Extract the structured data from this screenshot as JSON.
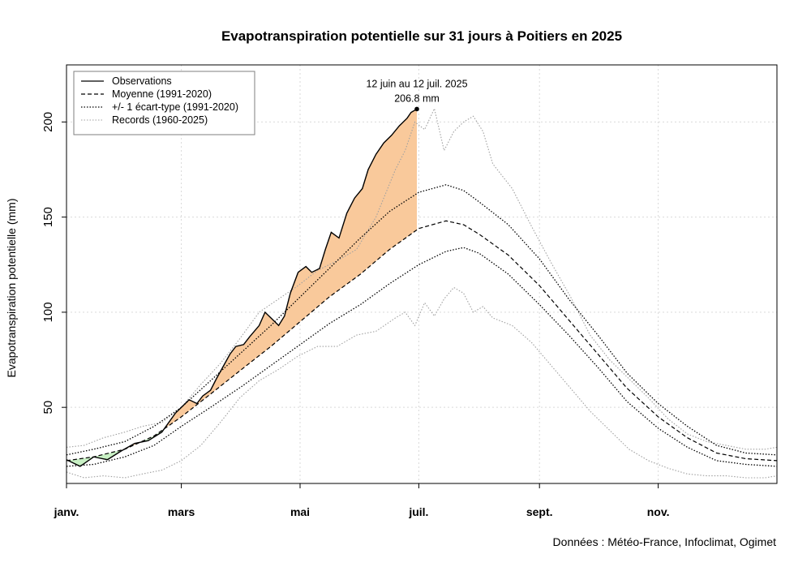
{
  "chart_data": {
    "type": "line",
    "title": "Evapotranspiration potentielle sur 31 jours à Poitiers en 2025",
    "ylabel": "Evapotranspiration potentielle (mm)",
    "xlabel": "",
    "source": "Données : Météo-France, Infoclimat, Ogimet",
    "ylim": [
      10,
      230
    ],
    "xlim": [
      1,
      366
    ],
    "grid": true,
    "legend_position": "top-left",
    "yticks": [
      50,
      100,
      150,
      200
    ],
    "month_ticks": [
      {
        "label": "janv.",
        "day": 1
      },
      {
        "label": "mars",
        "day": 60
      },
      {
        "label": "mai",
        "day": 121
      },
      {
        "label": "juil.",
        "day": 182
      },
      {
        "label": "sept.",
        "day": 244
      },
      {
        "label": "nov.",
        "day": 305
      }
    ],
    "legend": [
      {
        "label": "Observations",
        "style": "solid"
      },
      {
        "label": "Moyenne (1991-2020)",
        "style": "dashed"
      },
      {
        "label": "+/- 1 écart-type (1991-2020)",
        "style": "dotted"
      },
      {
        "label": "Records (1960-2025)",
        "style": "dotted-gray"
      }
    ],
    "annotation": {
      "line1": "12 juin au 12 juil. 2025",
      "line2": "206.8 mm",
      "day": 181,
      "value": 206.8
    },
    "colors": {
      "above": "#f9c99b",
      "above_light": "#fce3cb",
      "below": "#c8f0c4",
      "record": "#a0a0a0",
      "grid": "#d9d9d9"
    },
    "series": [
      {
        "name": "Observations",
        "days": [
          1,
          8,
          15,
          22,
          29,
          36,
          43,
          50,
          57,
          60,
          64,
          68,
          71,
          75,
          78,
          85,
          88,
          92,
          95,
          100,
          103,
          106,
          110,
          113,
          116,
          120,
          124,
          127,
          131,
          134,
          137,
          141,
          145,
          149,
          153,
          156,
          160,
          164,
          168,
          172,
          176,
          178,
          181
        ],
        "values": [
          22.5,
          19,
          24,
          22.5,
          27,
          31,
          32.5,
          37,
          47,
          50,
          54,
          52,
          56,
          59,
          65,
          78,
          82,
          83,
          87,
          93,
          100,
          97,
          93,
          98,
          110,
          121,
          124,
          121,
          123,
          133,
          142,
          139,
          152,
          160,
          165,
          175,
          183,
          189,
          193,
          198,
          202,
          205,
          206.8
        ]
      },
      {
        "name": "Moyenne (1991-2020)",
        "days": [
          1,
          15,
          31,
          46,
          60,
          75,
          91,
          106,
          121,
          136,
          152,
          167,
          182,
          196,
          205,
          213,
          228,
          244,
          259,
          274,
          289,
          305,
          320,
          335,
          350,
          366
        ],
        "values": [
          22,
          24,
          28,
          35,
          45,
          57,
          70,
          82,
          95,
          108,
          120,
          133,
          144,
          148,
          146,
          141,
          130,
          114,
          96,
          78,
          60,
          45,
          34,
          26,
          23,
          22
        ]
      },
      {
        "name": "+1 écart-type",
        "days": [
          1,
          15,
          31,
          46,
          60,
          75,
          91,
          106,
          121,
          136,
          152,
          167,
          182,
          196,
          205,
          213,
          228,
          244,
          259,
          274,
          289,
          305,
          320,
          335,
          350,
          366
        ],
        "values": [
          25,
          28,
          32,
          40,
          50,
          64,
          79,
          93,
          108,
          123,
          139,
          153,
          163,
          167,
          164,
          158,
          146,
          128,
          107,
          88,
          68,
          52,
          40,
          30,
          26,
          25
        ]
      },
      {
        "name": "-1 écart-type",
        "days": [
          1,
          15,
          31,
          46,
          60,
          75,
          91,
          106,
          121,
          136,
          152,
          167,
          182,
          196,
          205,
          213,
          228,
          244,
          259,
          274,
          289,
          305,
          320,
          335,
          350,
          366
        ],
        "values": [
          19,
          20,
          24,
          30,
          40,
          50,
          61,
          72,
          83,
          94,
          104,
          115,
          125,
          132,
          134,
          131,
          120,
          104,
          88,
          71,
          53,
          39,
          29,
          22,
          20,
          19
        ]
      },
      {
        "name": "Record max",
        "days": [
          1,
          10,
          20,
          31,
          40,
          50,
          60,
          70,
          80,
          90,
          100,
          110,
          120,
          130,
          140,
          150,
          160,
          170,
          175,
          180,
          185,
          190,
          195,
          200,
          205,
          210,
          215,
          220,
          230,
          240,
          250,
          260,
          270,
          280,
          290,
          300,
          310,
          320,
          330,
          340,
          350,
          360,
          366
        ],
        "values": [
          29,
          30,
          34,
          37,
          40,
          42,
          50,
          62,
          73,
          86,
          100,
          107,
          114,
          122,
          127,
          133,
          150,
          175,
          185,
          200,
          196,
          207,
          185,
          195,
          200,
          203,
          195,
          178,
          165,
          145,
          126,
          108,
          88,
          75,
          65,
          55,
          44,
          36,
          32,
          30,
          28,
          28,
          29
        ]
      },
      {
        "name": "Record min",
        "days": [
          1,
          10,
          20,
          31,
          40,
          50,
          60,
          70,
          80,
          90,
          100,
          110,
          120,
          130,
          140,
          150,
          160,
          170,
          175,
          180,
          185,
          190,
          195,
          200,
          205,
          210,
          215,
          220,
          230,
          240,
          250,
          260,
          270,
          280,
          290,
          300,
          310,
          320,
          330,
          340,
          350,
          360,
          366
        ],
        "values": [
          16,
          13,
          14,
          13,
          15,
          17,
          22,
          30,
          42,
          55,
          64,
          70,
          77,
          82,
          82,
          88,
          90,
          97,
          100,
          93,
          105,
          98,
          107,
          113,
          110,
          100,
          103,
          97,
          93,
          84,
          72,
          60,
          48,
          38,
          28,
          22,
          18,
          15,
          14,
          14,
          13,
          13,
          14
        ]
      }
    ]
  }
}
